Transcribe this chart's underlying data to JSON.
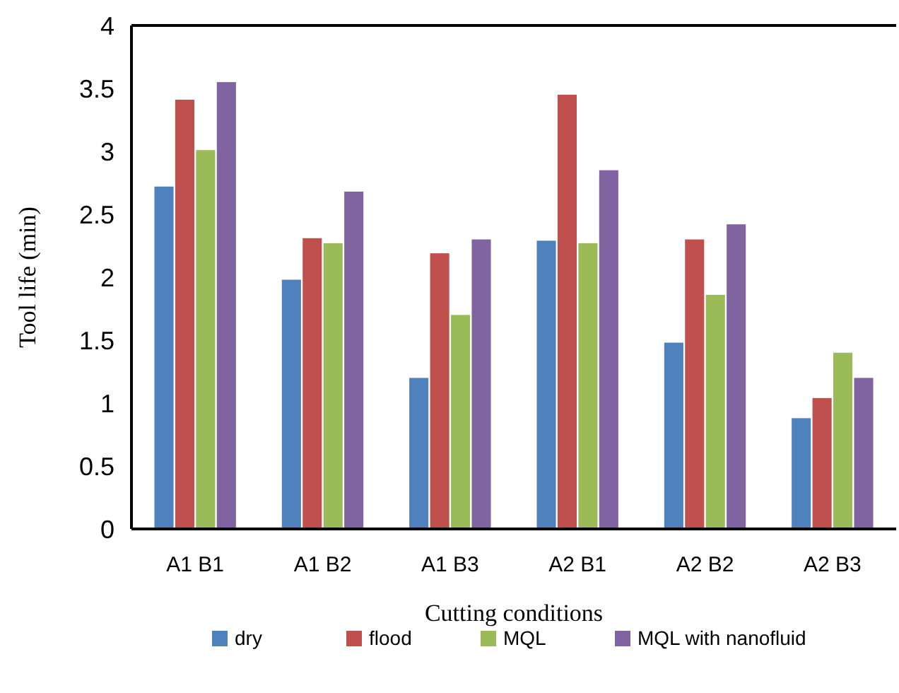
{
  "chart_data": {
    "type": "bar",
    "xlabel": "Cutting conditions",
    "ylabel": "Tool life (min)",
    "categories": [
      "A1 B1",
      "A1 B2",
      "A1 B3",
      "A2 B1",
      "A2 B2",
      "A2 B3"
    ],
    "series": [
      {
        "name": "dry",
        "color": "#4f81bd",
        "values": [
          2.72,
          1.98,
          1.2,
          2.29,
          1.48,
          0.88
        ]
      },
      {
        "name": "flood",
        "color": "#c0504d",
        "values": [
          3.41,
          2.31,
          2.19,
          3.45,
          2.3,
          1.04
        ]
      },
      {
        "name": "MQL",
        "color": "#9bbb59",
        "values": [
          3.01,
          2.27,
          1.7,
          2.27,
          1.86,
          1.4
        ]
      },
      {
        "name": "MQL with nanofluid",
        "color": "#8064a2",
        "values": [
          3.55,
          2.68,
          2.3,
          2.85,
          2.42,
          1.2
        ]
      }
    ],
    "ylim": [
      0,
      4
    ],
    "yticks": [
      0,
      0.5,
      1,
      1.5,
      2,
      2.5,
      3,
      3.5,
      4
    ],
    "grid": false,
    "legend": "bottom"
  }
}
